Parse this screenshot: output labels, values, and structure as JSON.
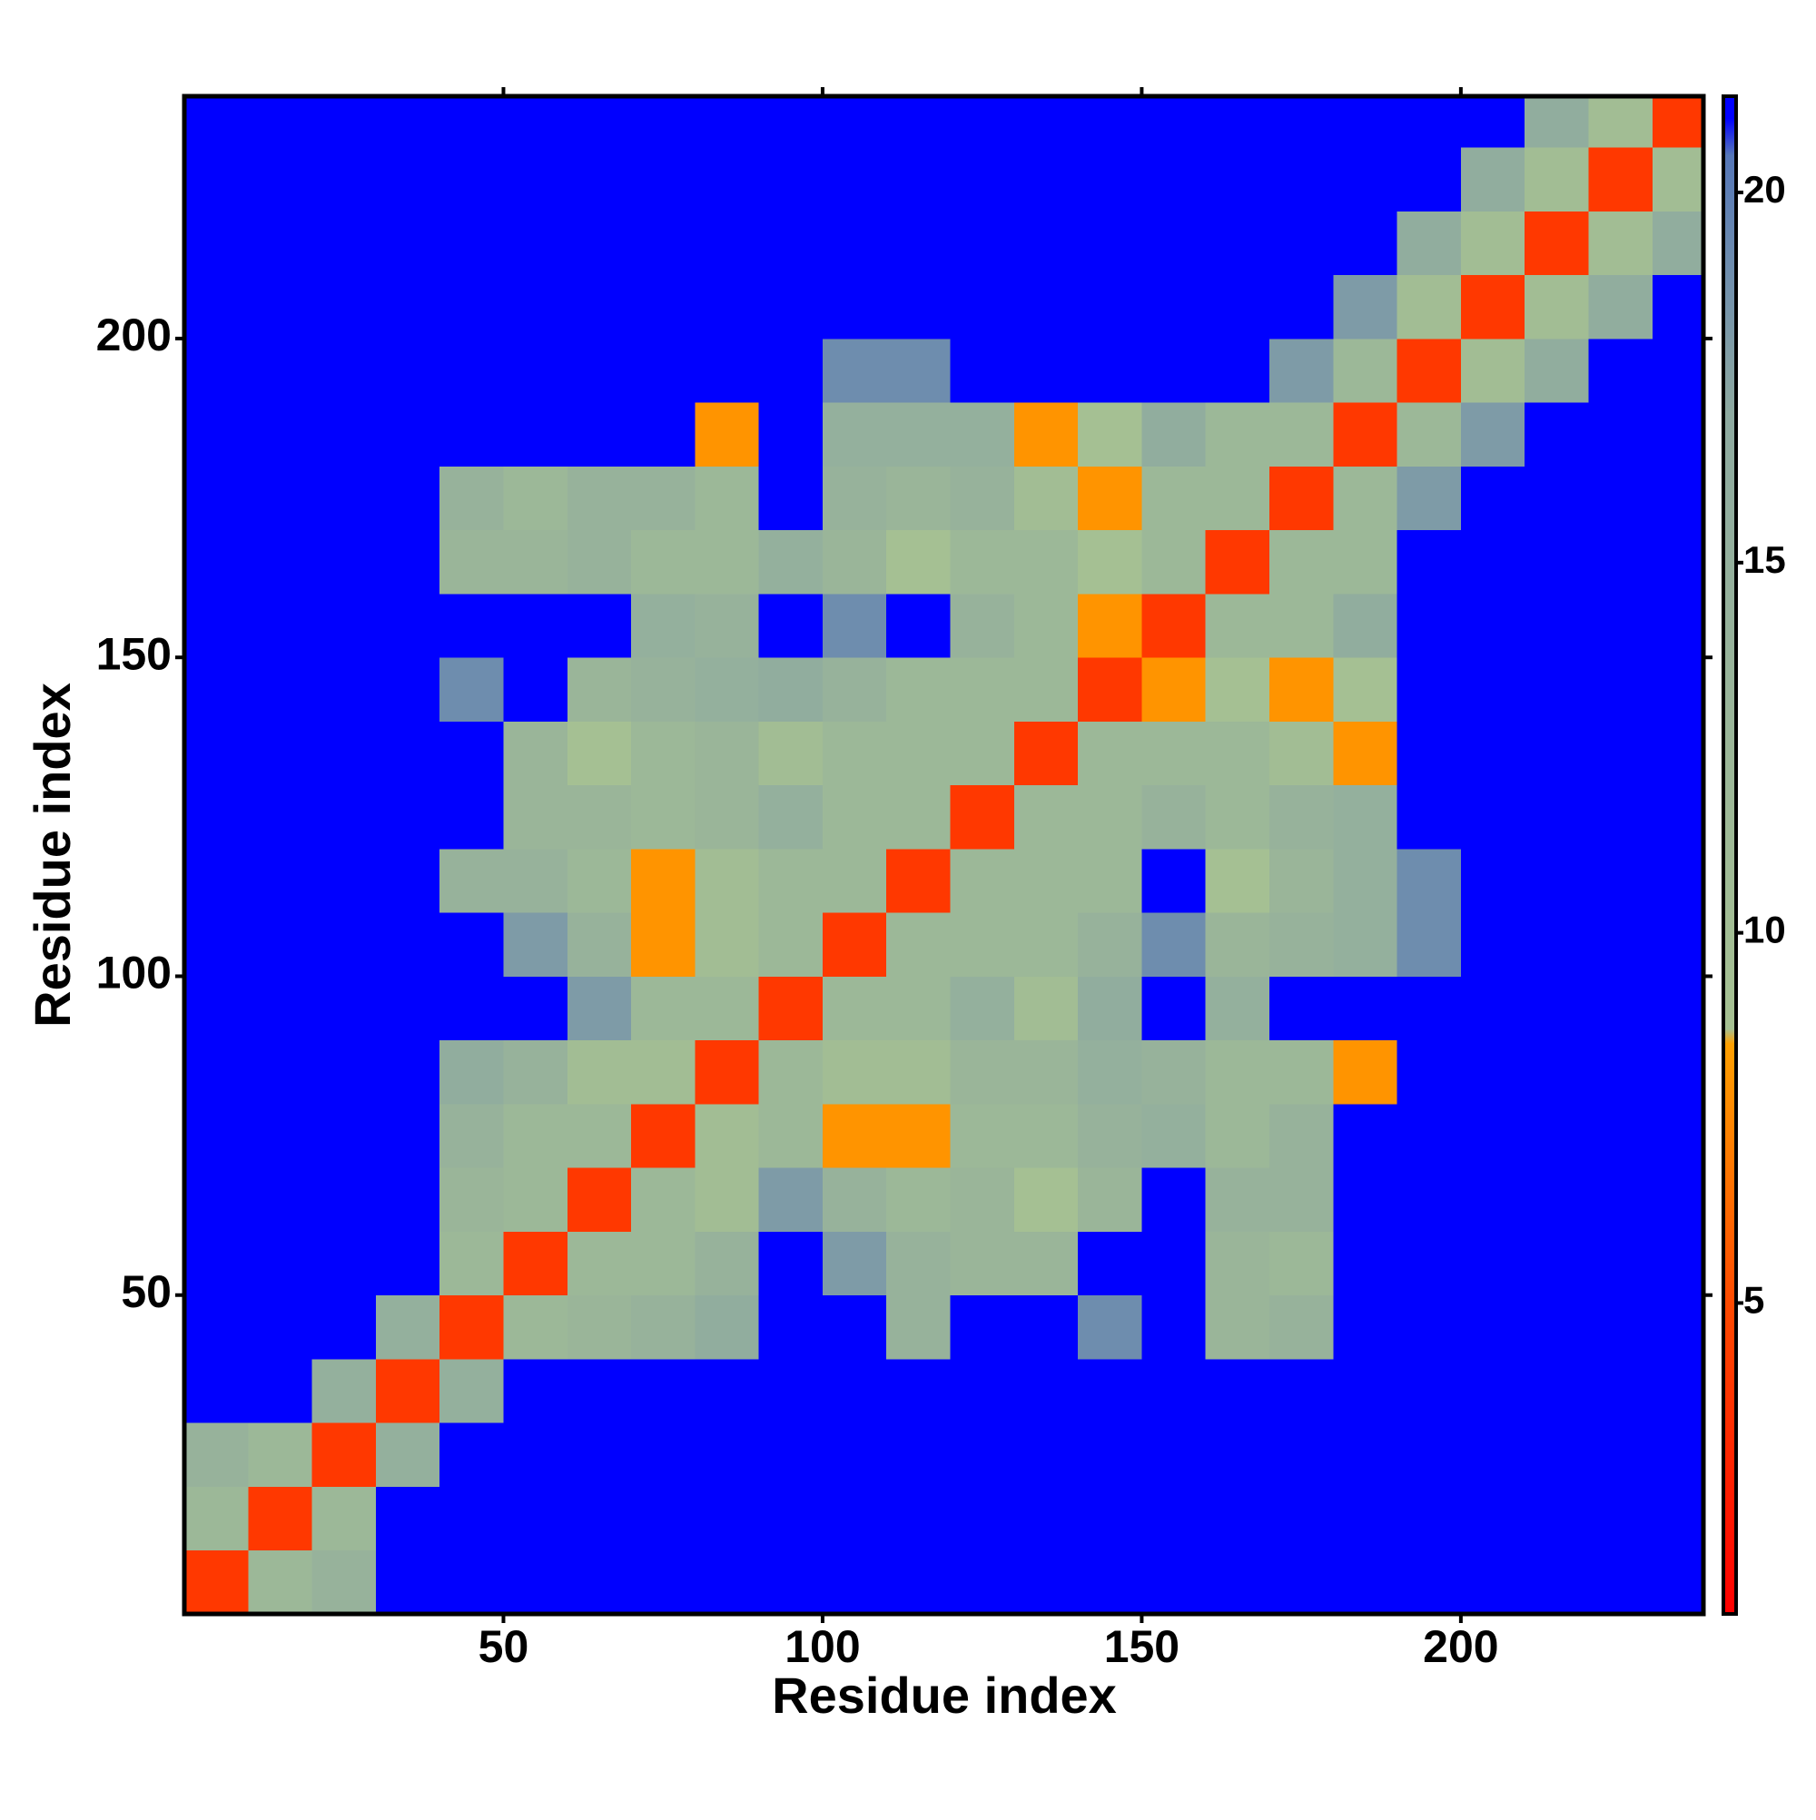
{
  "chart_data": {
    "type": "heatmap",
    "xlabel": "Residue index",
    "ylabel": "Residue index",
    "xbins": [
      0,
      10,
      20,
      30,
      40,
      50,
      60,
      70,
      80,
      90,
      100,
      110,
      120,
      130,
      140,
      150,
      160,
      170,
      180,
      190,
      200,
      210,
      220,
      230,
      238
    ],
    "ybins": [
      0,
      10,
      20,
      30,
      40,
      50,
      60,
      70,
      80,
      90,
      100,
      110,
      120,
      130,
      140,
      150,
      160,
      170,
      180,
      190,
      200,
      210,
      220,
      230,
      238
    ],
    "xlim": [
      0,
      238
    ],
    "ylim": [
      0,
      238
    ],
    "xticks": [
      50,
      100,
      150,
      200
    ],
    "yticks": [
      50,
      100,
      150,
      200
    ],
    "zlim": [
      0.8,
      21.3
    ],
    "zticks": [
      5,
      10,
      15,
      20
    ],
    "colorscale": [
      {
        "value": 0.8,
        "color": "#ff0000"
      },
      {
        "value": 5,
        "color": "#ff4a00"
      },
      {
        "value": 8.5,
        "color": "#ffa000"
      },
      {
        "value": 8.7,
        "color": "#a6c192"
      },
      {
        "value": 17,
        "color": "#8eaaa0"
      },
      {
        "value": 20.5,
        "color": "#5677b8"
      },
      {
        "value": 21,
        "color": "#0000ff"
      }
    ],
    "z": [
      [
        4,
        12,
        14,
        22,
        22,
        22,
        22,
        22,
        22,
        22,
        22,
        22,
        22,
        22,
        22,
        22,
        22,
        22,
        22,
        22,
        22,
        22,
        22,
        22
      ],
      [
        12,
        4,
        12,
        22,
        22,
        22,
        22,
        22,
        22,
        22,
        22,
        22,
        22,
        22,
        22,
        22,
        22,
        22,
        22,
        22,
        22,
        22,
        22,
        22
      ],
      [
        14,
        12,
        4,
        15,
        22,
        22,
        22,
        22,
        22,
        22,
        22,
        22,
        22,
        22,
        22,
        22,
        22,
        22,
        22,
        22,
        22,
        22,
        22,
        22
      ],
      [
        22,
        22,
        15,
        4,
        15,
        22,
        22,
        22,
        22,
        22,
        22,
        22,
        22,
        22,
        22,
        22,
        22,
        22,
        22,
        22,
        22,
        22,
        22,
        22
      ],
      [
        22,
        22,
        22,
        15,
        4,
        12,
        13,
        14,
        16,
        22,
        22,
        14,
        22,
        22,
        19,
        22,
        13,
        14,
        22,
        22,
        22,
        22,
        22,
        22
      ],
      [
        22,
        22,
        22,
        22,
        12,
        4,
        12,
        12,
        14,
        22,
        18,
        14,
        13,
        13,
        22,
        22,
        13,
        12,
        22,
        22,
        22,
        22,
        22,
        22
      ],
      [
        22,
        22,
        22,
        22,
        13,
        12,
        4,
        12,
        10,
        18,
        14,
        12,
        13,
        9,
        13,
        22,
        14,
        14,
        22,
        22,
        22,
        22,
        22,
        22
      ],
      [
        22,
        22,
        22,
        22,
        14,
        12,
        12,
        4,
        10,
        12,
        8,
        8,
        12,
        12,
        14,
        15,
        12,
        14,
        22,
        22,
        22,
        22,
        22,
        22
      ],
      [
        22,
        22,
        22,
        22,
        16,
        14,
        10,
        10,
        4,
        12,
        10,
        10,
        13,
        13,
        15,
        14,
        12,
        12,
        8,
        22,
        22,
        22,
        22,
        22
      ],
      [
        22,
        22,
        22,
        22,
        22,
        22,
        18,
        12,
        12,
        4,
        12,
        12,
        15,
        10,
        16,
        22,
        15,
        22,
        22,
        22,
        22,
        22,
        22,
        22
      ],
      [
        22,
        22,
        22,
        22,
        22,
        18,
        14,
        8,
        10,
        12,
        4,
        12,
        12,
        12,
        14,
        19,
        13,
        14,
        15,
        19,
        22,
        22,
        22,
        22
      ],
      [
        22,
        22,
        22,
        22,
        14,
        14,
        12,
        8,
        10,
        12,
        12,
        4,
        12,
        12,
        12,
        22,
        9,
        13,
        15,
        19,
        22,
        22,
        22,
        22
      ],
      [
        22,
        22,
        22,
        22,
        22,
        13,
        13,
        12,
        13,
        15,
        12,
        12,
        4,
        12,
        12,
        14,
        12,
        14,
        15,
        22,
        22,
        22,
        22,
        22
      ],
      [
        22,
        22,
        22,
        22,
        22,
        13,
        9,
        12,
        13,
        10,
        12,
        12,
        12,
        4,
        12,
        12,
        12,
        10,
        8,
        22,
        22,
        22,
        22,
        22
      ],
      [
        22,
        22,
        22,
        22,
        19,
        22,
        13,
        14,
        15,
        16,
        14,
        12,
        12,
        12,
        4,
        8,
        9,
        8,
        9,
        22,
        22,
        22,
        22,
        22
      ],
      [
        22,
        22,
        22,
        22,
        22,
        22,
        22,
        15,
        14,
        22,
        19,
        22,
        14,
        12,
        8,
        4,
        12,
        12,
        16,
        22,
        22,
        22,
        22,
        22
      ],
      [
        22,
        22,
        22,
        22,
        13,
        13,
        14,
        12,
        12,
        15,
        13,
        9,
        12,
        12,
        9,
        12,
        4,
        12,
        12,
        22,
        22,
        22,
        22,
        22
      ],
      [
        22,
        22,
        22,
        22,
        14,
        12,
        14,
        14,
        12,
        22,
        14,
        13,
        14,
        10,
        8,
        12,
        12,
        4,
        12,
        18,
        22,
        22,
        22,
        22
      ],
      [
        22,
        22,
        22,
        22,
        22,
        22,
        22,
        22,
        8,
        22,
        15,
        15,
        15,
        8,
        9,
        16,
        12,
        12,
        4,
        12,
        18,
        22,
        22,
        22
      ],
      [
        22,
        22,
        22,
        22,
        22,
        22,
        22,
        22,
        22,
        22,
        19,
        19,
        22,
        22,
        22,
        22,
        22,
        18,
        12,
        4,
        10,
        16,
        22,
        22
      ],
      [
        22,
        22,
        22,
        22,
        22,
        22,
        22,
        22,
        22,
        22,
        22,
        22,
        22,
        22,
        22,
        22,
        22,
        22,
        18,
        10,
        4,
        10,
        16,
        22
      ],
      [
        22,
        22,
        22,
        22,
        22,
        22,
        22,
        22,
        22,
        22,
        22,
        22,
        22,
        22,
        22,
        22,
        22,
        22,
        22,
        16,
        10,
        4,
        10,
        16
      ],
      [
        22,
        22,
        22,
        22,
        22,
        22,
        22,
        22,
        22,
        22,
        22,
        22,
        22,
        22,
        22,
        22,
        22,
        22,
        22,
        22,
        16,
        10,
        4,
        10
      ],
      [
        22,
        22,
        22,
        22,
        22,
        22,
        22,
        22,
        22,
        22,
        22,
        22,
        22,
        22,
        22,
        22,
        22,
        22,
        22,
        22,
        22,
        16,
        10,
        4
      ]
    ]
  }
}
